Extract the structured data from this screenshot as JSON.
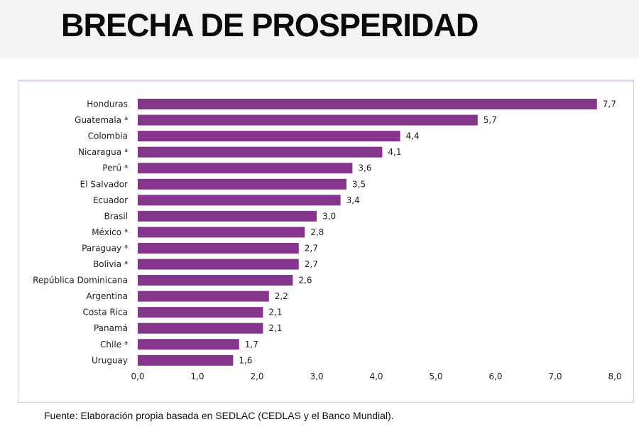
{
  "header": {
    "title": "BRECHA DE PROSPERIDAD"
  },
  "source": "Fuente: Elaboración propia basada en SEDLAC (CEDLAS y el Banco Mundial).",
  "colors": {
    "bar": "#85368c",
    "header_bg": "#f3f3f3"
  },
  "chart_data": {
    "type": "bar",
    "orientation": "horizontal",
    "categories": [
      "Honduras",
      "Guatemala",
      "Colombia",
      "Nicaragua",
      "Perú",
      "El Salvador",
      "Ecuador",
      "Brasil",
      "México",
      "Paraguay",
      "Bolivia",
      "República Dominicana",
      "Argentina",
      "Costa Rica",
      "Panamá",
      "Chile",
      "Uruguay"
    ],
    "superscripts": [
      "",
      "a",
      "",
      "a",
      "a",
      "",
      "",
      "",
      "a",
      "a",
      "a",
      "",
      "",
      "",
      "",
      "a",
      ""
    ],
    "values": [
      7.7,
      5.7,
      4.4,
      4.1,
      3.6,
      3.5,
      3.4,
      3.0,
      2.8,
      2.7,
      2.7,
      2.6,
      2.2,
      2.1,
      2.1,
      1.7,
      1.6
    ],
    "value_labels": [
      "7,7",
      "5,7",
      "4,4",
      "4,1",
      "3,6",
      "3,5",
      "3,4",
      "3,0",
      "2,8",
      "2,7",
      "2,7",
      "2,6",
      "2,2",
      "2,1",
      "2,1",
      "1,7",
      "1,6"
    ],
    "xlim": [
      0,
      8
    ],
    "x_ticks": [
      "0,0",
      "1,0",
      "2,0",
      "3,0",
      "4,0",
      "5,0",
      "6,0",
      "7,0",
      "8,0"
    ],
    "grid": false,
    "legend": "none"
  }
}
